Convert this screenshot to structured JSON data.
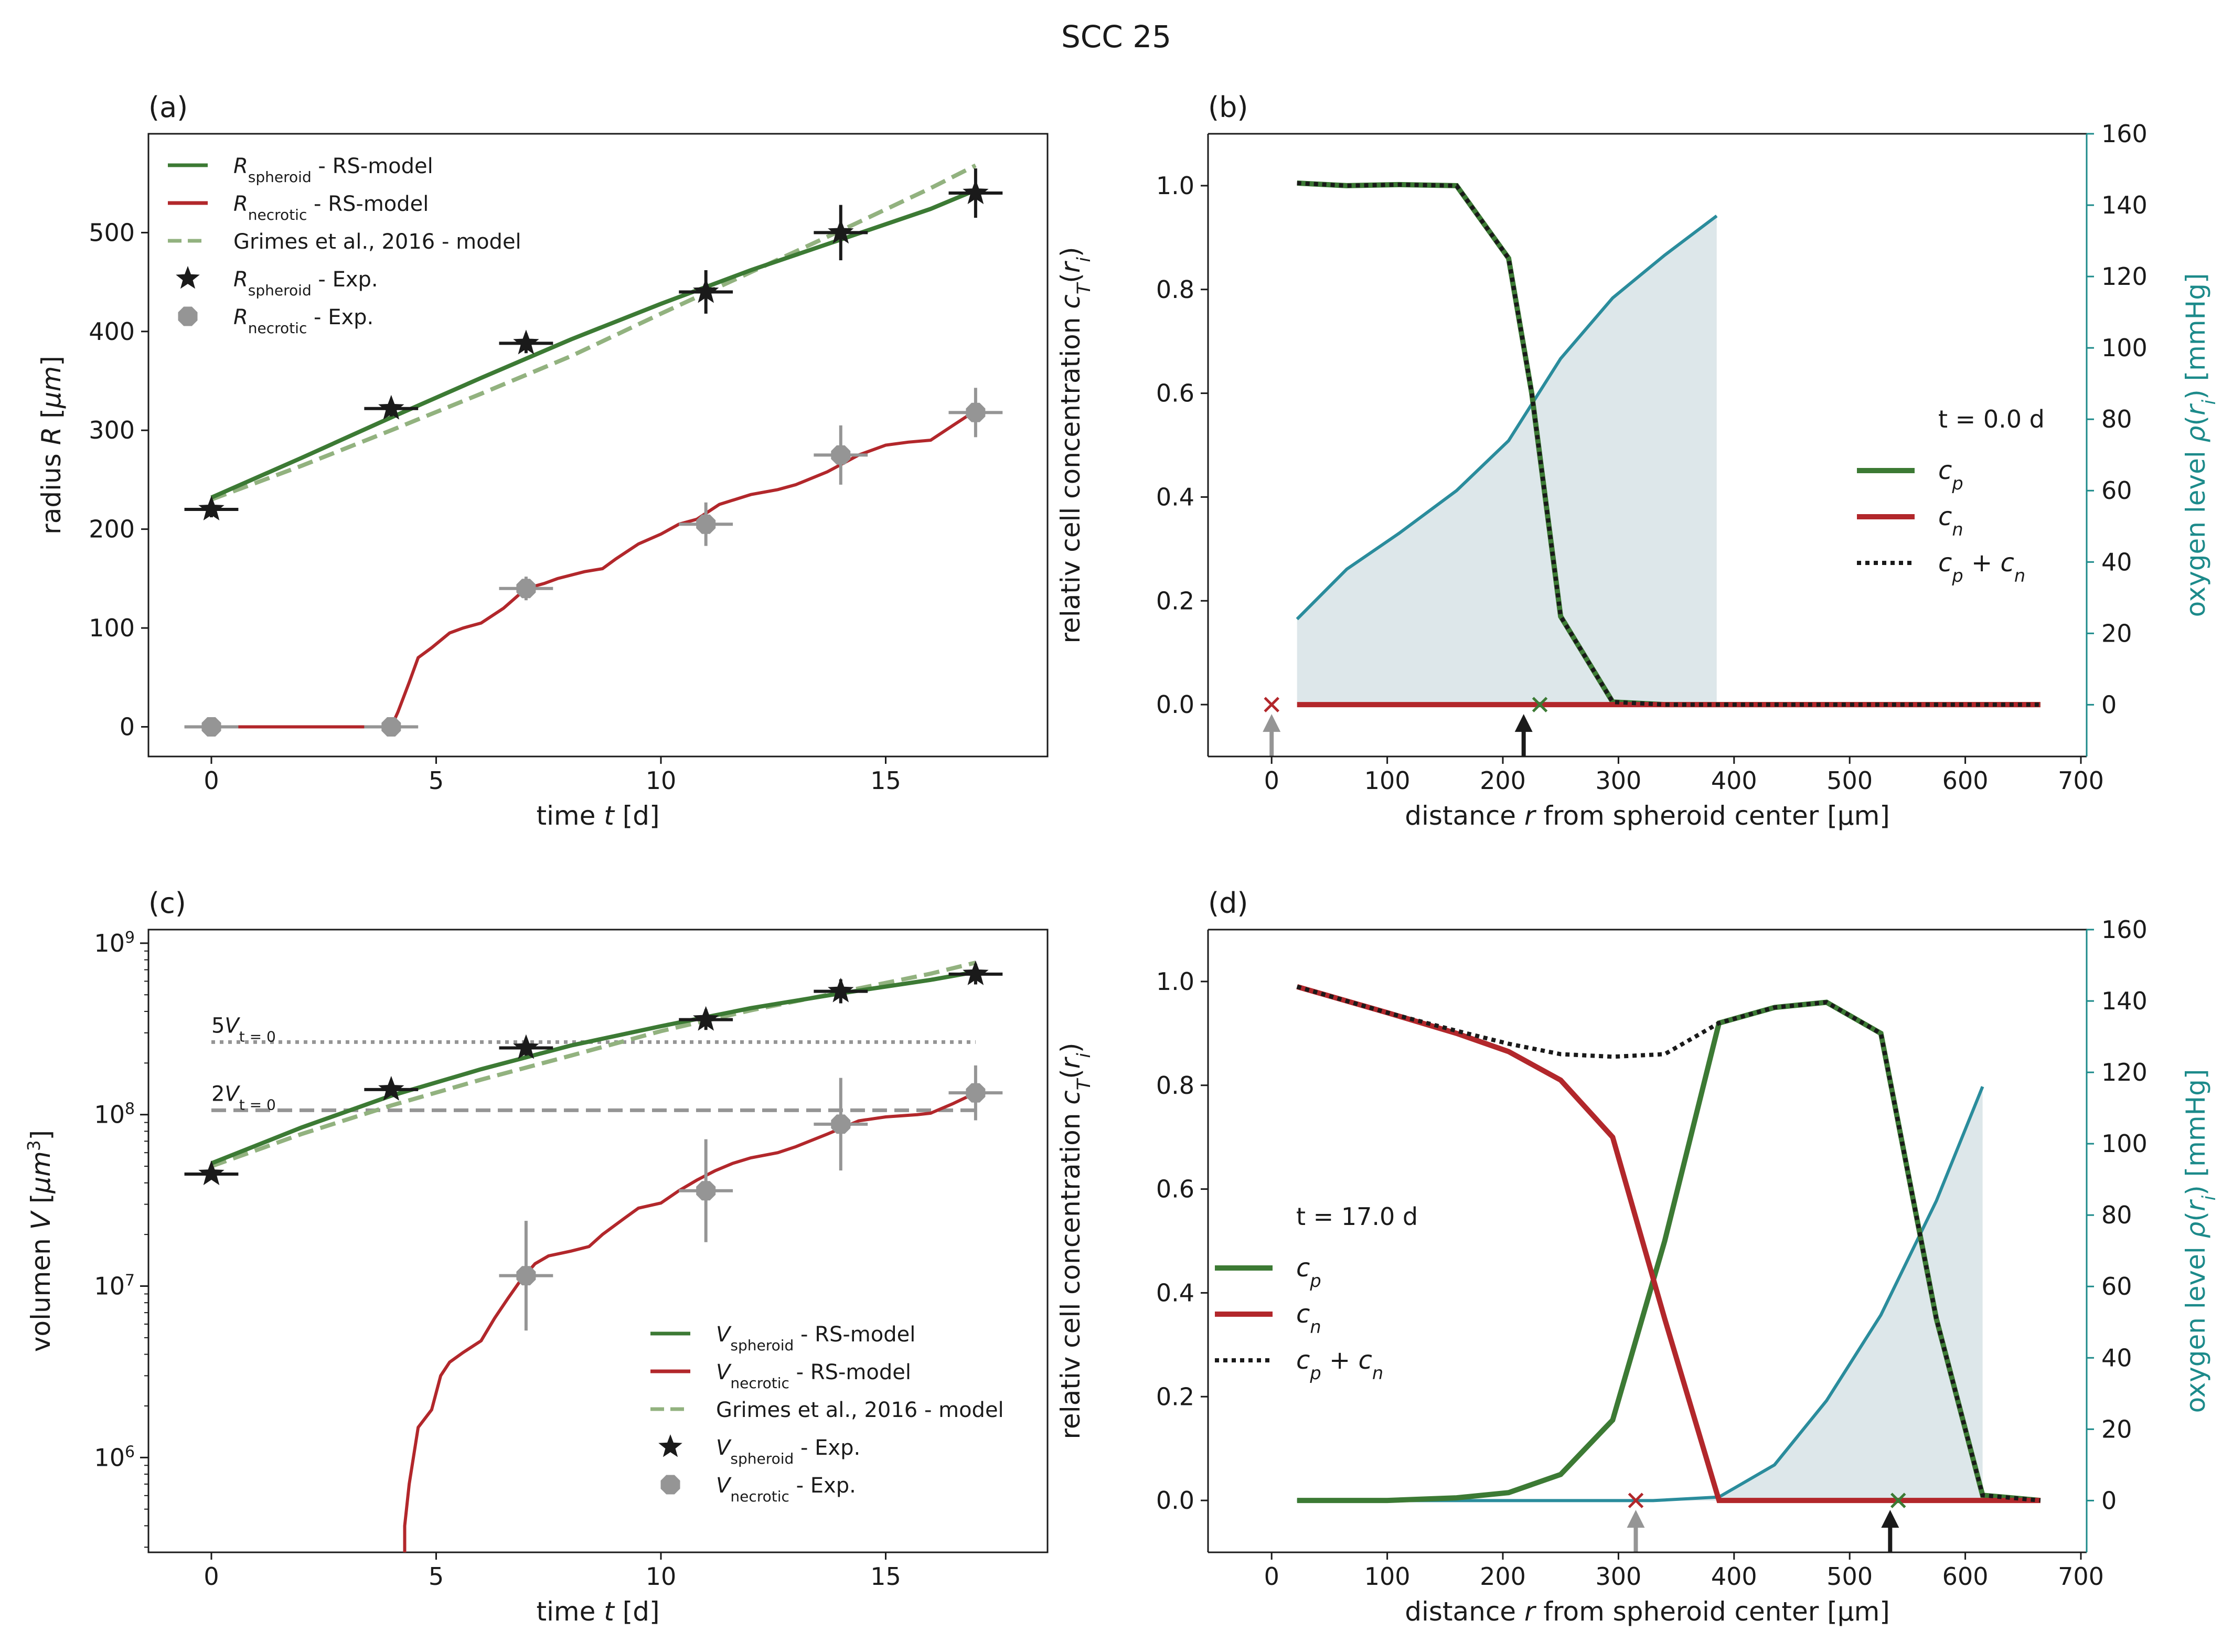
{
  "suptitle": "SCC 25",
  "colors": {
    "green": "#3c7a34",
    "red": "#b2272b",
    "lightgreen": "#92b27f",
    "gray": "#959595",
    "black": "#1a1a1a",
    "teal": "#2a8c9c",
    "tealAxis": "#1c8a8a",
    "fill": "#dde7ea"
  },
  "chart_data": [
    {
      "panel": "(a)",
      "type": "line",
      "title": "",
      "xlabel": "time t [d]",
      "ylabel": "radius R [µm]",
      "xlim": [
        -1.4,
        18.6
      ],
      "ylim": [
        -30,
        600
      ],
      "xticks": [
        0,
        5,
        10,
        15
      ],
      "yticks": [
        0,
        100,
        200,
        300,
        400,
        500
      ],
      "legend": [
        "R_spheroid - RS-model",
        "R_necrotic - RS-model",
        "Grimes et al., 2016 - model",
        "R_spheroid - Exp.",
        "R_necrotic - Exp."
      ],
      "series": [
        {
          "name": "R_spheroid - RS-model",
          "x": [
            0,
            2,
            4,
            6,
            8,
            10,
            12,
            14,
            16,
            17
          ],
          "y": [
            232,
            272,
            313,
            353,
            392,
            428,
            462,
            493,
            524,
            543
          ]
        },
        {
          "name": "R_necrotic - RS-model",
          "x": [
            0,
            4.0,
            4.15,
            4.4,
            4.6,
            4.9,
            5.3,
            5.6,
            6.0,
            6.5,
            7.0,
            7.4,
            7.7,
            8.3,
            8.7,
            9.0,
            9.5,
            10.0,
            10.4,
            10.8,
            11.3,
            12.0,
            12.6,
            13.0,
            13.7,
            14.4,
            15.0,
            15.5,
            16.0,
            16.5,
            17.0
          ],
          "y": [
            0,
            0,
            15,
            45,
            70,
            80,
            95,
            100,
            105,
            120,
            140,
            145,
            150,
            157,
            160,
            170,
            185,
            195,
            205,
            210,
            225,
            235,
            240,
            245,
            258,
            275,
            285,
            288,
            290,
            305,
            320
          ]
        },
        {
          "name": "Grimes et al., 2016 - model",
          "x": [
            0,
            2,
            4,
            6,
            8,
            10,
            12,
            14,
            16,
            17
          ],
          "y": [
            230,
            264,
            300,
            337,
            375,
            418,
            460,
            502,
            545,
            568
          ]
        }
      ],
      "points": [
        {
          "name": "R_spheroid - Exp.",
          "x": [
            0,
            4,
            7,
            11,
            14,
            17
          ],
          "y": [
            220,
            322,
            388,
            440,
            500,
            540
          ],
          "xerr": [
            0.6,
            0.6,
            0.6,
            0.6,
            0.6,
            0.6
          ],
          "yerr": [
            8,
            8,
            10,
            22,
            28,
            25
          ]
        },
        {
          "name": "R_necrotic - Exp.",
          "x": [
            0,
            4,
            7,
            11,
            14,
            17
          ],
          "y": [
            0,
            0,
            140,
            205,
            275,
            318
          ],
          "xerr": [
            0.6,
            0.6,
            0.6,
            0.6,
            0.6,
            0.6
          ],
          "yerr": [
            0,
            0,
            12,
            22,
            30,
            25
          ]
        }
      ]
    },
    {
      "panel": "(b)",
      "type": "line",
      "title": "",
      "xlabel": "distance r from spheroid center [µm]",
      "ylabel": "relativ cell concentration c_T(r_i)",
      "ylabel_right": "oxygen level ρ(r_i) [mmHg]",
      "xlim": [
        -55,
        705
      ],
      "ylim": [
        -0.1,
        1.1
      ],
      "ylim_right": [
        -14.5,
        160
      ],
      "xticks": [
        0,
        100,
        200,
        300,
        400,
        500,
        600,
        700
      ],
      "yticks": [
        0.0,
        0.2,
        0.4,
        0.6,
        0.8,
        1.0
      ],
      "yticks_right": [
        0,
        20,
        40,
        60,
        80,
        100,
        120,
        140,
        160
      ],
      "legend_title": "t = 0.0 d",
      "legend": [
        "c_p",
        "c_n",
        "c_p + c_n"
      ],
      "series": [
        {
          "name": "c_p",
          "x": [
            22,
            65,
            110,
            160,
            205,
            225,
            250,
            295,
            340,
            385,
            500,
            665
          ],
          "y": [
            1.005,
            1.0,
            1.002,
            1.0,
            0.86,
            0.6,
            0.17,
            0.005,
            0.0,
            0.0,
            0.0,
            0.0
          ]
        },
        {
          "name": "c_n",
          "x": [
            22,
            665
          ],
          "y": [
            0,
            0
          ]
        },
        {
          "name": "c_p + c_n",
          "x": [
            22,
            65,
            110,
            160,
            205,
            225,
            250,
            295,
            340,
            385,
            500,
            665
          ],
          "y": [
            1.005,
            1.0,
            1.002,
            1.0,
            0.86,
            0.6,
            0.17,
            0.005,
            0.0,
            0.0,
            0.0,
            0.0
          ]
        },
        {
          "name": "oxygen level",
          "axis": "right",
          "x": [
            22,
            65,
            110,
            160,
            205,
            250,
            295,
            340,
            385
          ],
          "y": [
            24,
            38,
            48,
            60,
            74,
            97,
            114,
            126,
            137
          ]
        }
      ],
      "markers": {
        "red_x": 0,
        "green_x": 232,
        "gray_arrow": 0,
        "black_arrow": 218
      }
    },
    {
      "panel": "(c)",
      "type": "line",
      "title": "",
      "xlabel": "time t [d]",
      "ylabel": "volumen V [µm³]",
      "yscale": "log",
      "xlim": [
        -1.4,
        18.6
      ],
      "ylim": [
        280000,
        1200000000
      ],
      "xticks": [
        0,
        5,
        10,
        15
      ],
      "yticks": [
        "10^6",
        "10^7",
        "10^8",
        "10^9"
      ],
      "legend": [
        "V_spheroid - RS-model",
        "V_necrotic - RS-model",
        "Grimes et al., 2016 - model",
        "V_spheroid - Exp.",
        "V_necrotic - Exp."
      ],
      "annotations": [
        "5V_{t=0}",
        "2V_{t=0}"
      ],
      "hlines": [
        {
          "label": "5V_{t=0}",
          "y": 265000000
        },
        {
          "label": "2V_{t=0}",
          "y": 106000000
        }
      ],
      "series": [
        {
          "name": "V_spheroid - RS-model",
          "x": [
            0,
            2,
            4,
            6,
            8,
            10,
            12,
            14,
            16,
            17
          ],
          "y": [
            52000000,
            84000000,
            129000000,
            184000000,
            253000000,
            328000000,
            418000000,
            510000000,
            611000000,
            680000000
          ]
        },
        {
          "name": "V_necrotic - RS-model",
          "x": [
            4.3,
            4.4,
            4.6,
            4.9,
            5.1,
            5.3,
            5.6,
            6.0,
            6.3,
            6.6,
            6.9,
            7.2,
            7.5,
            8.0,
            8.4,
            8.7,
            9.2,
            9.5,
            10.0,
            10.4,
            10.8,
            11.2,
            11.6,
            12.0,
            12.6,
            13.0,
            13.7,
            14.4,
            15.0,
            15.7,
            16.0,
            16.5,
            17.0
          ],
          "y": [
            400000,
            700000,
            1500000,
            1900000,
            3000000,
            3600000,
            4100000,
            4800000,
            6500000,
            8500000,
            11000000,
            13500000,
            15000000,
            16000000,
            17000000,
            20000000,
            25000000,
            28500000,
            30500000,
            36000000,
            41500000,
            47000000,
            52000000,
            56000000,
            60000000,
            65000000,
            77000000,
            92000000,
            97000000,
            100000000,
            102000000,
            116000000,
            134000000
          ]
        },
        {
          "name": "Grimes et al., 2016 - model",
          "x": [
            0,
            2,
            4,
            6,
            8,
            10,
            12,
            14,
            16,
            17
          ],
          "y": [
            50000000,
            77000000,
            113000000,
            160000000,
            221000000,
            307000000,
            406000000,
            518000000,
            664000000,
            770000000
          ]
        }
      ],
      "points": [
        {
          "name": "V_spheroid - Exp.",
          "x": [
            0,
            4,
            7,
            11,
            14,
            17
          ],
          "y": [
            45000000,
            140000000,
            245000000,
            358000000,
            524000000,
            660000000
          ]
        },
        {
          "name": "V_necrotic - Exp.",
          "x": [
            7,
            11,
            14,
            17
          ],
          "y": [
            11500000,
            36000000,
            88000000,
            134000000
          ]
        }
      ]
    },
    {
      "panel": "(d)",
      "type": "line",
      "title": "",
      "xlabel": "distance r from spheroid center [µm]",
      "ylabel": "relativ cell concentration c_T(r_i)",
      "ylabel_right": "oxygen level ρ(r_i) [mmHg]",
      "xlim": [
        -55,
        705
      ],
      "ylim": [
        -0.1,
        1.1
      ],
      "ylim_right": [
        -14.5,
        160
      ],
      "xticks": [
        0,
        100,
        200,
        300,
        400,
        500,
        600,
        700
      ],
      "yticks": [
        0.0,
        0.2,
        0.4,
        0.6,
        0.8,
        1.0
      ],
      "yticks_right": [
        0,
        20,
        40,
        60,
        80,
        100,
        120,
        140,
        160
      ],
      "legend_title": "t = 17.0 d",
      "legend": [
        "c_p",
        "c_n",
        "c_p + c_n"
      ],
      "series": [
        {
          "name": "c_p",
          "x": [
            22,
            100,
            160,
            205,
            250,
            295,
            340,
            387,
            435,
            480,
            527,
            575,
            615,
            665
          ],
          "y": [
            0,
            0,
            0.005,
            0.015,
            0.05,
            0.155,
            0.5,
            0.92,
            0.95,
            0.96,
            0.9,
            0.35,
            0.01,
            0.0
          ]
        },
        {
          "name": "c_n",
          "x": [
            22,
            100,
            160,
            205,
            250,
            295,
            340,
            387,
            665
          ],
          "y": [
            0.99,
            0.94,
            0.9,
            0.865,
            0.81,
            0.7,
            0.35,
            0.0,
            0.0
          ]
        },
        {
          "name": "c_p + c_n",
          "x": [
            22,
            100,
            160,
            205,
            250,
            295,
            340,
            387,
            435,
            480,
            527,
            575,
            615,
            665
          ],
          "y": [
            0.99,
            0.94,
            0.905,
            0.88,
            0.86,
            0.855,
            0.86,
            0.92,
            0.95,
            0.96,
            0.9,
            0.35,
            0.01,
            0.0
          ]
        },
        {
          "name": "oxygen level",
          "axis": "right",
          "x": [
            22,
            330,
            387,
            435,
            480,
            527,
            575,
            615
          ],
          "y": [
            0,
            0,
            1,
            10,
            28,
            52,
            84,
            116
          ]
        }
      ],
      "markers": {
        "red_x": 315,
        "green_x": 542,
        "gray_arrow": 315,
        "black_arrow": 535
      }
    }
  ]
}
